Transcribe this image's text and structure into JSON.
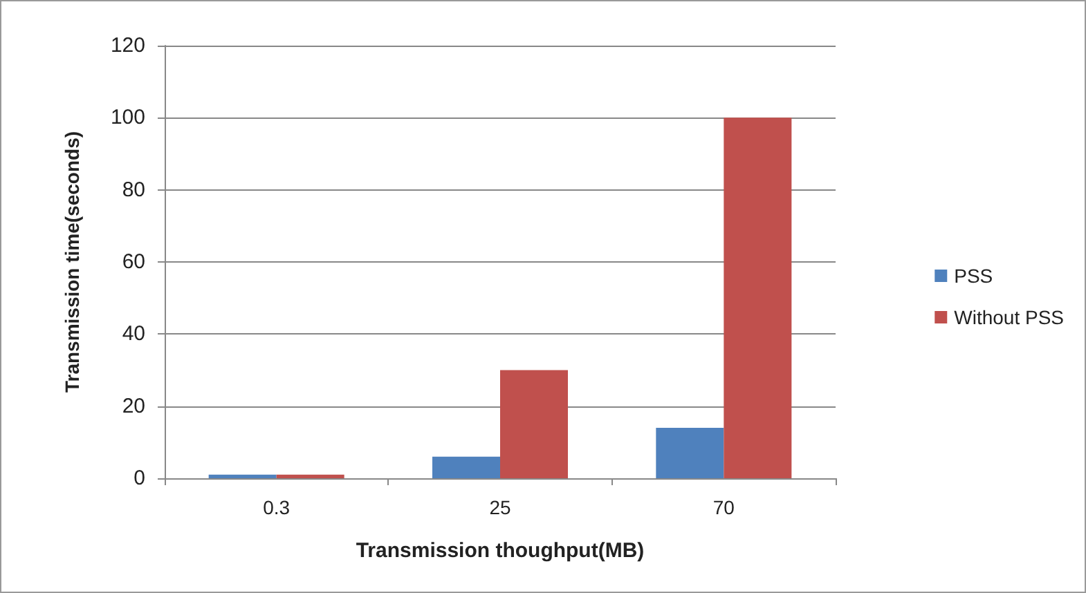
{
  "chart_data": {
    "type": "bar",
    "xlabel": "Transmission thoughput(MB)",
    "ylabel": "Transmission time(seconds)",
    "categories": [
      "0.3",
      "25",
      "70"
    ],
    "series": [
      {
        "name": "PSS",
        "color": "#4f81bd",
        "values": [
          1,
          6,
          14
        ]
      },
      {
        "name": "Without PSS",
        "color": "#c0504d",
        "values": [
          1,
          30,
          100
        ]
      }
    ],
    "ylim": [
      0,
      120
    ],
    "yticks": [
      0,
      20,
      40,
      60,
      80,
      100,
      120
    ],
    "grid": "y",
    "legend": "right"
  }
}
